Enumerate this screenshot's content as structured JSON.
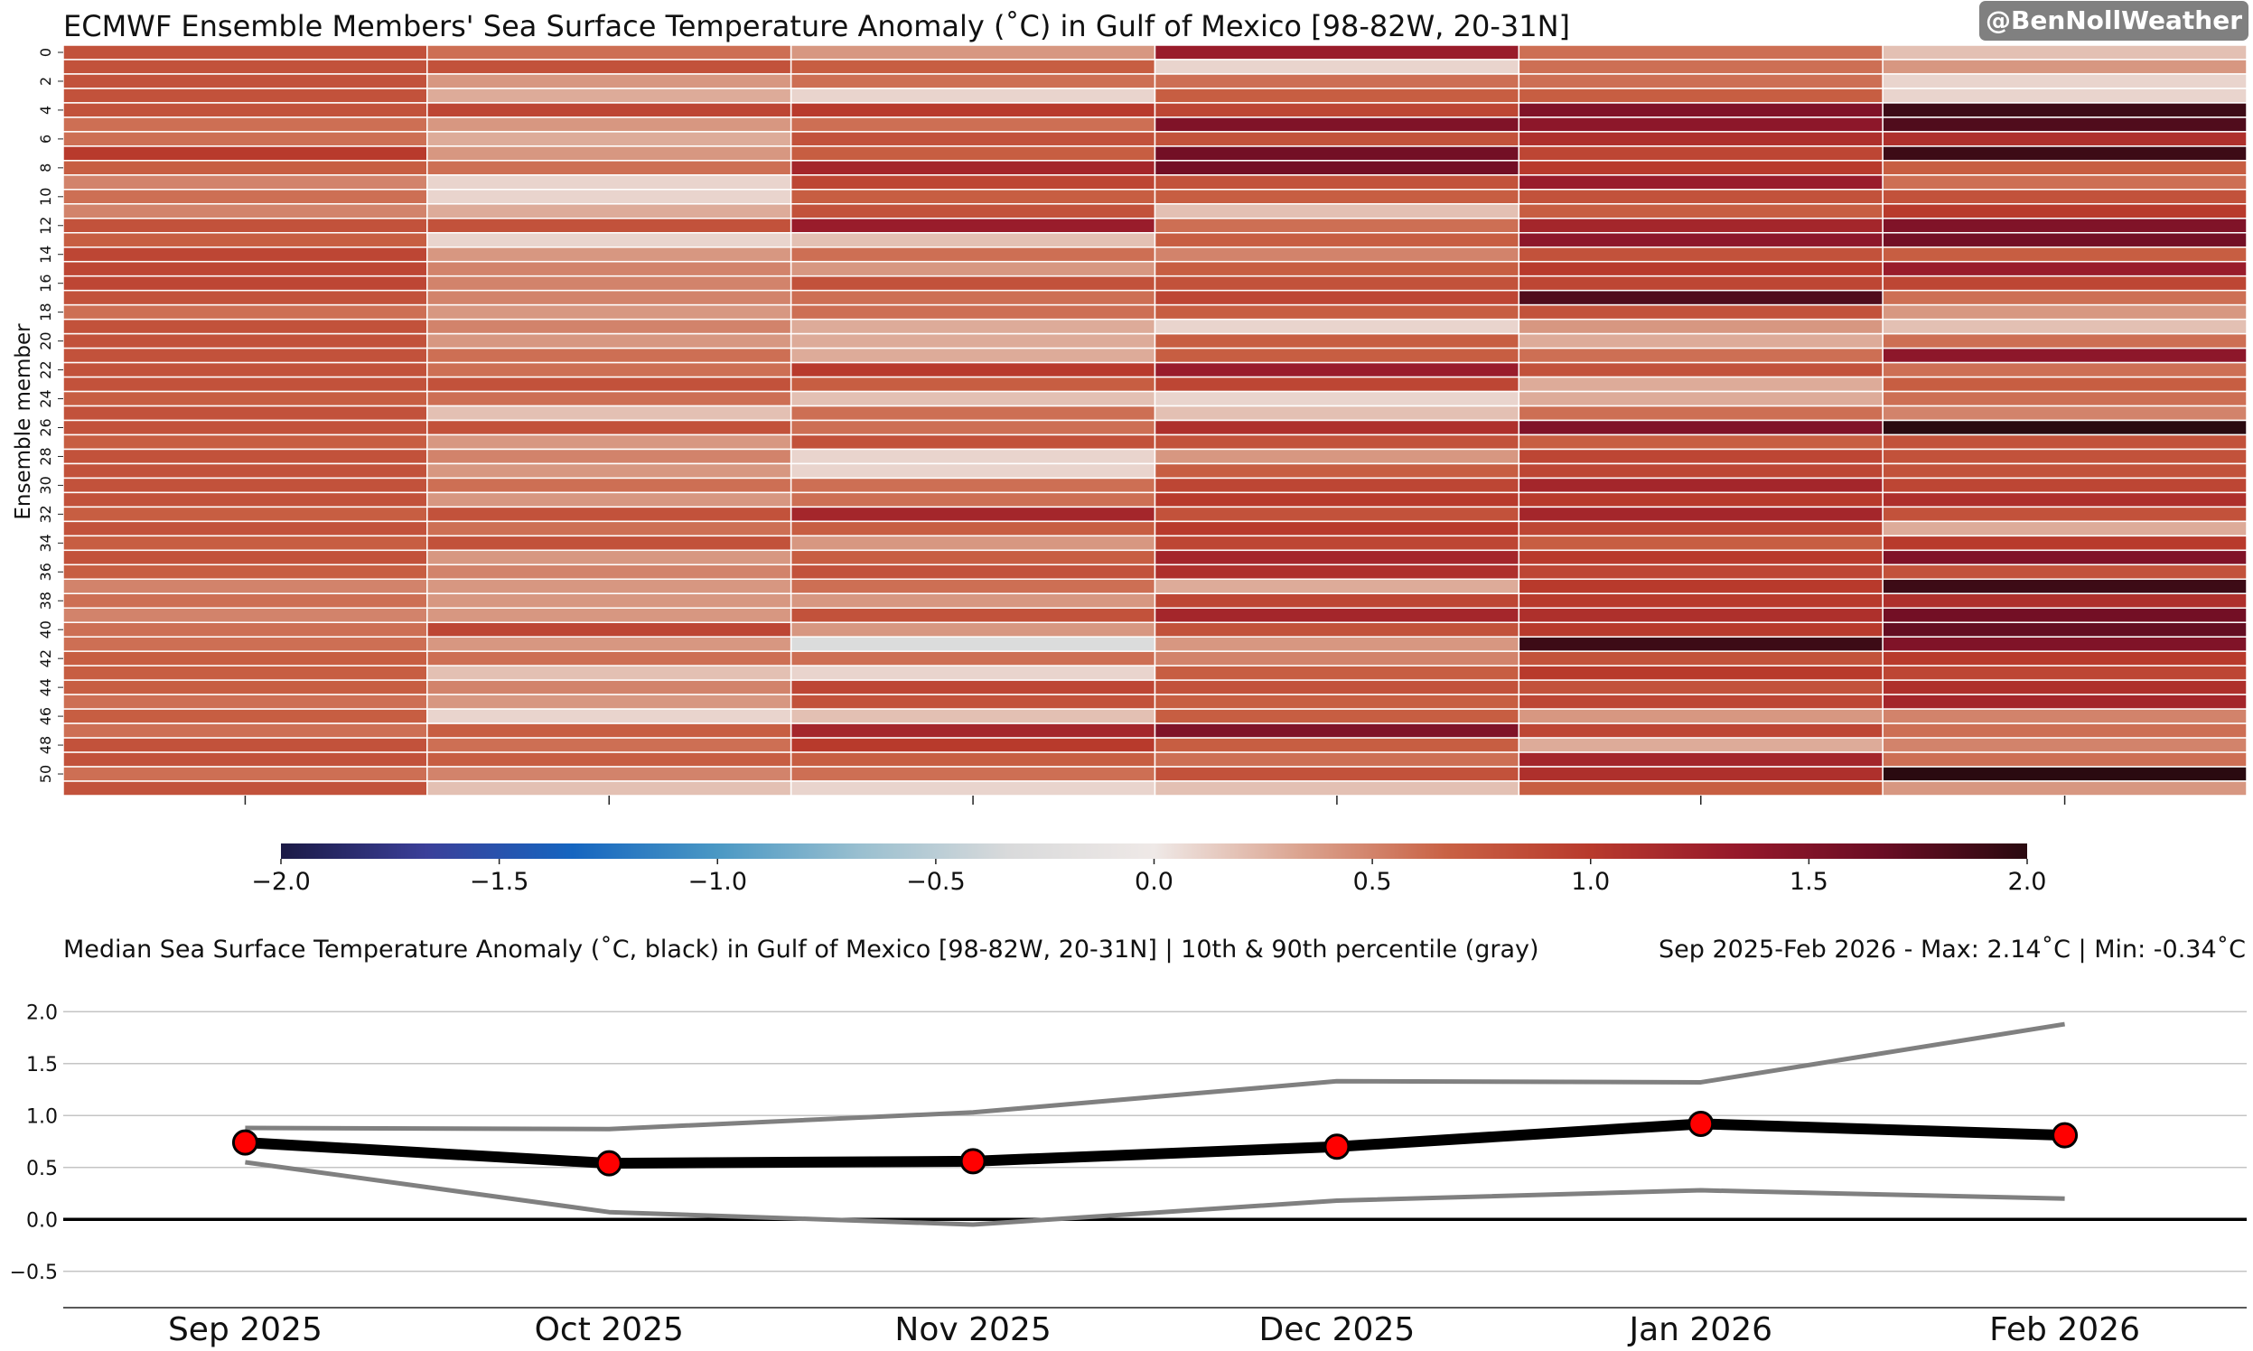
{
  "watermark": "@BenNollWeather",
  "chart_data": [
    {
      "type": "heatmap",
      "title": "ECMWF Ensemble Members' Sea Surface Temperature Anomaly (˚C) in Gulf of Mexico [98-82W, 20-31N]",
      "ylabel": "Ensemble member",
      "x_categories": [
        "Sep 2025",
        "Oct 2025",
        "Nov 2025",
        "Dec 2025",
        "Jan 2026",
        "Feb 2026"
      ],
      "y_tick_labels": [
        "0",
        "2",
        "4",
        "6",
        "8",
        "10",
        "12",
        "14",
        "16",
        "18",
        "20",
        "22",
        "24",
        "26",
        "28",
        "30",
        "32",
        "34",
        "36",
        "38",
        "40",
        "42",
        "44",
        "46",
        "48",
        "50"
      ],
      "colorbar": {
        "vmin": -2.0,
        "vmax": 2.0,
        "ticks": [
          "−2.0",
          "−1.5",
          "−1.0",
          "−0.5",
          "0.0",
          "0.5",
          "1.0",
          "1.5",
          "2.0"
        ],
        "colors": [
          "#1b1a45",
          "#3b3f99",
          "#1565c0",
          "#4a98c4",
          "#9bc0d0",
          "#d9dadb",
          "#efe9e7",
          "#dba490",
          "#c96245",
          "#b83a2c",
          "#96192b",
          "#6a0d24",
          "#2a0a10"
        ]
      },
      "values": [
        [
          0.8,
          0.6,
          0.4,
          1.3,
          0.6,
          0.2
        ],
        [
          0.8,
          0.8,
          0.7,
          0.1,
          0.6,
          0.4
        ],
        [
          0.8,
          0.4,
          0.6,
          0.6,
          0.6,
          0.1
        ],
        [
          0.8,
          0.3,
          0.1,
          0.7,
          0.7,
          0.1
        ],
        [
          0.8,
          0.9,
          1.0,
          0.9,
          1.5,
          1.9
        ],
        [
          0.6,
          0.4,
          0.6,
          1.5,
          1.4,
          1.8
        ],
        [
          0.6,
          0.3,
          0.8,
          0.8,
          1.1,
          1.1
        ],
        [
          1.0,
          0.4,
          0.7,
          1.6,
          0.9,
          1.9
        ],
        [
          0.7,
          0.6,
          1.2,
          1.6,
          1.0,
          0.7
        ],
        [
          0.5,
          0.1,
          0.9,
          0.8,
          1.3,
          0.6
        ],
        [
          0.6,
          0.1,
          0.7,
          0.7,
          0.8,
          0.8
        ],
        [
          0.5,
          0.3,
          0.8,
          0.2,
          0.7,
          1.0
        ],
        [
          0.8,
          0.8,
          1.3,
          0.6,
          1.2,
          1.5
        ],
        [
          0.7,
          0.1,
          0.2,
          0.7,
          1.4,
          1.6
        ],
        [
          0.9,
          0.4,
          0.6,
          0.5,
          0.8,
          0.7
        ],
        [
          0.9,
          0.5,
          0.4,
          0.7,
          1.0,
          1.3
        ],
        [
          0.9,
          0.5,
          0.8,
          0.8,
          0.9,
          0.9
        ],
        [
          0.8,
          0.5,
          0.6,
          0.9,
          1.8,
          0.6
        ],
        [
          0.6,
          0.4,
          0.6,
          0.7,
          0.8,
          0.4
        ],
        [
          0.8,
          0.5,
          0.3,
          0.1,
          0.4,
          0.2
        ],
        [
          0.8,
          0.4,
          0.3,
          0.7,
          0.3,
          0.6
        ],
        [
          0.8,
          0.6,
          0.3,
          0.7,
          0.6,
          1.4
        ],
        [
          0.8,
          0.6,
          1.0,
          1.3,
          0.8,
          0.6
        ],
        [
          0.8,
          0.8,
          0.7,
          0.9,
          0.3,
          0.7
        ],
        [
          0.7,
          0.6,
          0.2,
          0.1,
          0.3,
          0.6
        ],
        [
          0.8,
          0.2,
          0.6,
          0.2,
          0.6,
          0.5
        ],
        [
          0.8,
          0.8,
          0.6,
          1.1,
          1.5,
          2.0
        ],
        [
          0.7,
          0.4,
          0.8,
          0.8,
          0.7,
          0.8
        ],
        [
          0.8,
          0.5,
          0.1,
          0.4,
          0.9,
          0.8
        ],
        [
          0.8,
          0.4,
          0.1,
          0.7,
          0.9,
          0.8
        ],
        [
          0.8,
          0.6,
          0.6,
          0.9,
          1.2,
          0.9
        ],
        [
          0.8,
          0.4,
          0.6,
          1.0,
          1.0,
          1.1
        ],
        [
          0.7,
          0.8,
          1.2,
          0.8,
          1.2,
          0.8
        ],
        [
          0.8,
          0.6,
          0.7,
          1.0,
          0.9,
          0.3
        ],
        [
          0.7,
          0.8,
          0.4,
          0.9,
          0.7,
          1.0
        ],
        [
          0.8,
          0.4,
          0.7,
          1.2,
          1.0,
          1.5
        ],
        [
          0.7,
          0.5,
          0.8,
          1.1,
          0.9,
          0.8
        ],
        [
          0.5,
          0.4,
          0.6,
          0.3,
          1.0,
          1.9
        ],
        [
          0.6,
          0.4,
          0.4,
          0.9,
          1.0,
          1.1
        ],
        [
          0.5,
          0.4,
          0.8,
          1.2,
          1.1,
          1.6
        ],
        [
          0.6,
          0.9,
          0.4,
          0.8,
          1.0,
          1.7
        ],
        [
          0.6,
          0.4,
          -0.3,
          0.4,
          1.9,
          1.5
        ],
        [
          0.7,
          0.6,
          0.6,
          0.5,
          0.8,
          1.0
        ],
        [
          0.7,
          0.2,
          0.1,
          0.7,
          1.0,
          0.9
        ],
        [
          0.7,
          0.5,
          0.9,
          0.8,
          0.8,
          1.1
        ],
        [
          0.6,
          0.4,
          0.8,
          0.7,
          0.9,
          1.2
        ],
        [
          0.7,
          0.1,
          0.2,
          0.7,
          0.4,
          0.5
        ],
        [
          0.6,
          0.7,
          1.2,
          1.5,
          0.9,
          0.6
        ],
        [
          0.8,
          0.6,
          1.0,
          0.7,
          0.3,
          0.5
        ],
        [
          0.8,
          0.7,
          0.7,
          0.6,
          1.2,
          0.6
        ],
        [
          0.6,
          0.5,
          0.6,
          0.8,
          1.1,
          2.0
        ],
        [
          0.8,
          0.2,
          0.1,
          0.2,
          0.7,
          0.4
        ]
      ]
    },
    {
      "type": "line",
      "title": "Median Sea Surface Temperature Anomaly (˚C, black) in Gulf of Mexico [98-82W, 20-31N] | 10th & 90th percentile (gray)",
      "subtitle": "Sep 2025-Feb 2026 - Max: 2.14˚C | Min: -0.34˚C",
      "categories": [
        "Sep 2025",
        "Oct 2025",
        "Nov 2025",
        "Dec 2025",
        "Jan 2026",
        "Feb 2026"
      ],
      "series": [
        {
          "values": [
            0.74,
            0.54,
            0.56,
            0.7,
            0.92,
            0.81
          ],
          "color": "#000000",
          "marker_color": "#ff0000"
        },
        {
          "values": [
            0.88,
            0.87,
            1.03,
            1.33,
            1.32,
            1.88
          ],
          "color": "#808080"
        },
        {
          "values": [
            0.55,
            0.07,
            -0.05,
            0.18,
            0.28,
            0.2
          ],
          "color": "#808080"
        }
      ],
      "yticks": [
        "−0.5",
        "0.0",
        "0.5",
        "1.0",
        "1.5",
        "2.0"
      ],
      "ylim": [
        -0.85,
        2.35
      ],
      "grid": true
    }
  ]
}
